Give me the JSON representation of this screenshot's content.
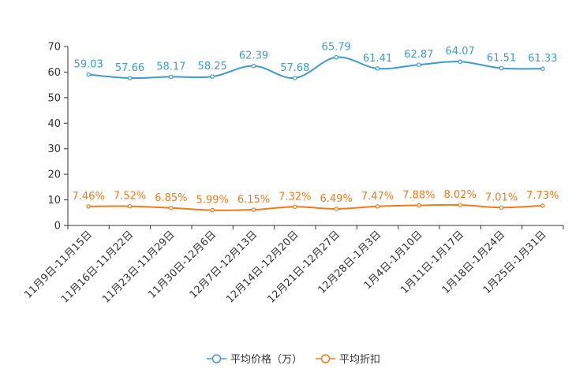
{
  "chart_data": {
    "type": "line",
    "title": "",
    "xlabel": "",
    "ylabel": "",
    "ylim": [
      0,
      70
    ],
    "yticks": [
      0,
      10,
      20,
      30,
      40,
      50,
      60,
      70
    ],
    "grid": false,
    "legend_position": "bottom",
    "categories": [
      "11月9日-11月15日",
      "11月16日-11月22日",
      "11月23日-11月29日",
      "11月30日-12月6日",
      "12月7日-12月13日",
      "12月14日-12月20日",
      "12月21日-12月27日",
      "12月28日-1月3日",
      "1月4日-1月10日",
      "1月11日-1月17日",
      "1月18日-1月24日",
      "1月25日-1月31日"
    ],
    "series": [
      {
        "name": "平均价格（万）",
        "color": "#3d9ad1",
        "values": [
          59.03,
          57.66,
          58.17,
          58.25,
          62.39,
          57.68,
          65.79,
          61.41,
          62.87,
          64.07,
          61.51,
          61.33
        ],
        "labels": [
          "59.03",
          "57.66",
          "58.17",
          "58.25",
          "62.39",
          "57.68",
          "65.79",
          "61.41",
          "62.87",
          "64.07",
          "61.51",
          "61.33"
        ]
      },
      {
        "name": "平均折扣",
        "color": "#f07b1a",
        "values": [
          7.46,
          7.52,
          6.85,
          5.99,
          6.15,
          7.32,
          6.49,
          7.47,
          7.88,
          8.02,
          7.01,
          7.73
        ],
        "labels": [
          "7.46%",
          "7.52%",
          "6.85%",
          "5.99%",
          "6.15%",
          "7.32%",
          "6.49%",
          "7.47%",
          "7.88%",
          "8.02%",
          "7.01%",
          "7.73%"
        ]
      }
    ]
  }
}
